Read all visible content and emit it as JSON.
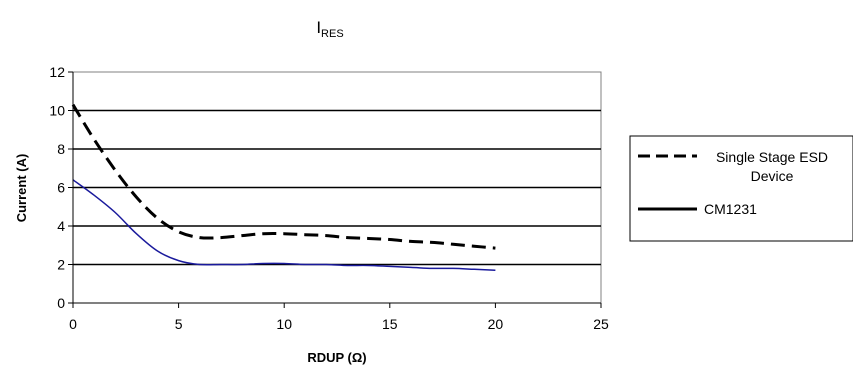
{
  "chart_data": {
    "type": "line",
    "title": "I",
    "title_subscript": "RES",
    "xlabel": "RDUP (Ω)",
    "ylabel": "Current (A)",
    "xlim": [
      0,
      25
    ],
    "ylim": [
      0,
      12
    ],
    "x_ticks": [
      0,
      5,
      10,
      15,
      20,
      25
    ],
    "y_ticks": [
      0,
      2,
      4,
      6,
      8,
      10,
      12
    ],
    "grid": "horizontal",
    "legend_position": "right",
    "series": [
      {
        "name": "Single Stage ESD Device",
        "legend_lines": [
          "Single Stage ESD",
          "Device"
        ],
        "style": "dashed",
        "color": "#000000",
        "x": [
          0,
          1,
          2,
          3,
          4,
          5,
          6,
          7,
          8,
          9,
          10,
          11,
          12,
          13,
          14,
          15,
          16,
          17,
          18,
          19,
          20
        ],
        "y": [
          10.3,
          8.5,
          6.9,
          5.5,
          4.4,
          3.7,
          3.4,
          3.4,
          3.5,
          3.6,
          3.6,
          3.55,
          3.5,
          3.4,
          3.35,
          3.3,
          3.2,
          3.15,
          3.05,
          2.95,
          2.85
        ]
      },
      {
        "name": "CM1231",
        "style": "solid",
        "color": "#1a1a9c",
        "legend_color": "#000000",
        "x": [
          0,
          1,
          2,
          3,
          4,
          5,
          6,
          7,
          8,
          9,
          10,
          11,
          12,
          13,
          14,
          15,
          16,
          17,
          18,
          19,
          20
        ],
        "y": [
          6.4,
          5.6,
          4.7,
          3.6,
          2.7,
          2.2,
          2.0,
          2.0,
          2.0,
          2.05,
          2.05,
          2.0,
          2.0,
          1.95,
          1.95,
          1.9,
          1.85,
          1.8,
          1.8,
          1.75,
          1.7
        ]
      }
    ]
  }
}
